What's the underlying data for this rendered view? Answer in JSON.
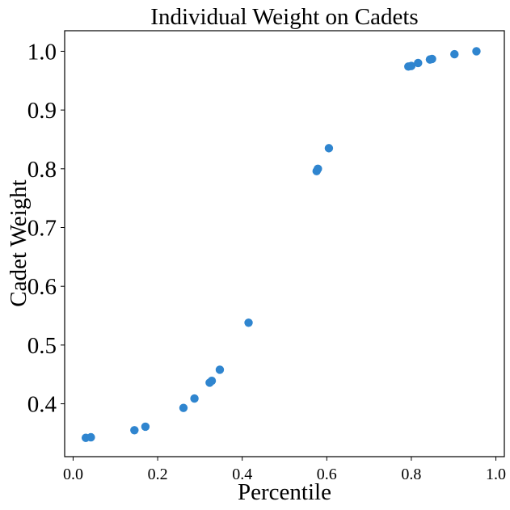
{
  "chart_data": {
    "type": "scatter",
    "title": "Individual Weight on Cadets",
    "xlabel": "Percentile",
    "ylabel": "Cadet Weight",
    "xlim": [
      -0.02,
      1.02
    ],
    "ylim": [
      0.31,
      1.035
    ],
    "xticks": [
      0.0,
      0.2,
      0.4,
      0.6,
      0.8,
      1.0
    ],
    "xtick_labels": [
      "0.0",
      "0.2",
      "0.4",
      "0.6",
      "0.8",
      "1.0"
    ],
    "yticks": [
      0.4,
      0.5,
      0.6,
      0.7,
      0.8,
      0.9,
      1.0
    ],
    "ytick_labels": [
      "0.4",
      "0.5",
      "0.6",
      "0.7",
      "0.8",
      "0.9",
      "1.0"
    ],
    "grid": false,
    "point_color": "#2f85cf",
    "points": [
      {
        "x": 0.03,
        "y": 0.342
      },
      {
        "x": 0.042,
        "y": 0.343
      },
      {
        "x": 0.145,
        "y": 0.355
      },
      {
        "x": 0.171,
        "y": 0.361
      },
      {
        "x": 0.261,
        "y": 0.393
      },
      {
        "x": 0.287,
        "y": 0.409
      },
      {
        "x": 0.323,
        "y": 0.436
      },
      {
        "x": 0.328,
        "y": 0.439
      },
      {
        "x": 0.347,
        "y": 0.458
      },
      {
        "x": 0.415,
        "y": 0.538
      },
      {
        "x": 0.576,
        "y": 0.796
      },
      {
        "x": 0.579,
        "y": 0.8
      },
      {
        "x": 0.605,
        "y": 0.835
      },
      {
        "x": 0.793,
        "y": 0.974
      },
      {
        "x": 0.8,
        "y": 0.975
      },
      {
        "x": 0.816,
        "y": 0.98
      },
      {
        "x": 0.844,
        "y": 0.986
      },
      {
        "x": 0.849,
        "y": 0.987
      },
      {
        "x": 0.902,
        "y": 0.995
      },
      {
        "x": 0.954,
        "y": 1.0
      }
    ]
  }
}
